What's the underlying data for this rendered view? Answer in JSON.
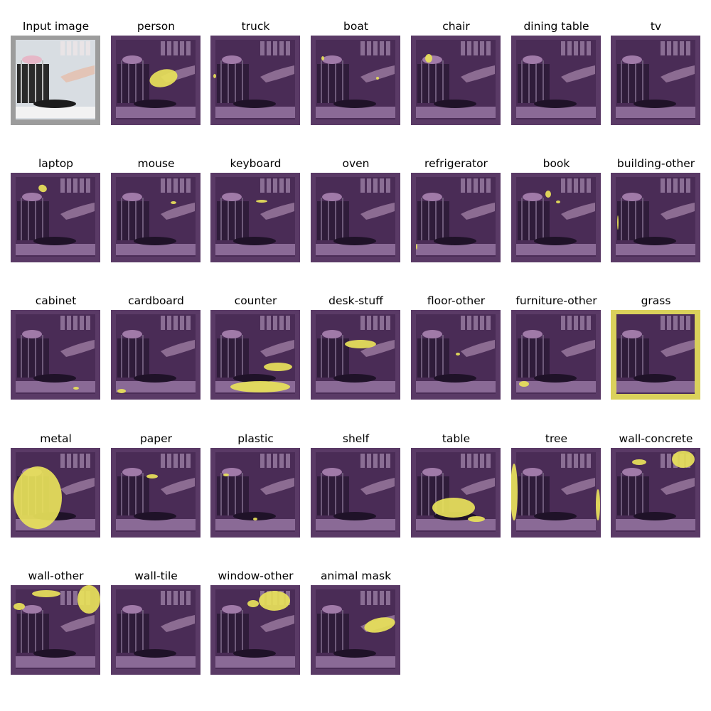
{
  "panels": [
    {
      "title": "Input image",
      "kind": "input",
      "mask": []
    },
    {
      "title": "person",
      "kind": "mask",
      "mask": [
        [
          74,
          60,
          20,
          12,
          -15
        ]
      ]
    },
    {
      "title": "truck",
      "kind": "mask",
      "mask": [
        [
          6,
          57,
          2,
          3,
          0
        ]
      ]
    },
    {
      "title": "boat",
      "kind": "mask",
      "mask": [
        [
          17,
          32,
          2,
          3,
          0
        ],
        [
          94,
          60,
          2,
          2,
          0
        ]
      ]
    },
    {
      "title": "chair",
      "kind": "mask",
      "mask": [
        [
          25,
          32,
          5,
          6,
          0
        ]
      ]
    },
    {
      "title": "dining table",
      "kind": "mask",
      "mask": []
    },
    {
      "title": "tv",
      "kind": "mask",
      "mask": []
    },
    {
      "title": "laptop",
      "kind": "mask",
      "mask": [
        [
          45,
          22,
          6,
          5,
          25
        ]
      ]
    },
    {
      "title": "mouse",
      "kind": "mask",
      "mask": [
        [
          88,
          42,
          4,
          2,
          0
        ]
      ]
    },
    {
      "title": "keyboard",
      "kind": "mask",
      "mask": [
        [
          72,
          40,
          8,
          2,
          0
        ]
      ]
    },
    {
      "title": "oven",
      "kind": "mask",
      "mask": []
    },
    {
      "title": "refrigerator",
      "kind": "mask",
      "mask": [
        [
          8,
          104,
          1,
          4,
          0
        ]
      ]
    },
    {
      "title": "book",
      "kind": "mask",
      "mask": [
        [
          52,
          30,
          4,
          5,
          0
        ],
        [
          66,
          41,
          3,
          2,
          0
        ]
      ]
    },
    {
      "title": "building-other",
      "kind": "mask",
      "mask": [
        [
          10,
          70,
          1,
          10,
          0
        ]
      ]
    },
    {
      "title": "cabinet",
      "kind": "mask",
      "mask": [
        [
          92,
          110,
          4,
          2,
          0
        ]
      ]
    },
    {
      "title": "cardboard",
      "kind": "mask",
      "mask": [
        [
          15,
          114,
          6,
          3,
          0
        ]
      ]
    },
    {
      "title": "counter",
      "kind": "mask",
      "mask": [
        [
          70,
          108,
          42,
          8,
          0
        ],
        [
          95,
          80,
          20,
          6,
          0
        ]
      ]
    },
    {
      "title": "desk-stuff",
      "kind": "mask",
      "mask": [
        [
          70,
          48,
          22,
          6,
          0
        ]
      ]
    },
    {
      "title": "floor-other",
      "kind": "mask",
      "mask": [
        [
          66,
          62,
          3,
          2,
          0
        ]
      ]
    },
    {
      "title": "furniture-other",
      "kind": "mask",
      "mask": [
        [
          18,
          104,
          7,
          4,
          0
        ]
      ]
    },
    {
      "title": "grass",
      "kind": "frame",
      "mask": []
    },
    {
      "title": "metal",
      "kind": "mask",
      "mask": [
        [
          38,
          70,
          34,
          44,
          0
        ]
      ]
    },
    {
      "title": "paper",
      "kind": "mask",
      "mask": [
        [
          58,
          40,
          8,
          3,
          0
        ]
      ]
    },
    {
      "title": "plastic",
      "kind": "mask",
      "mask": [
        [
          22,
          38,
          4,
          2,
          0
        ],
        [
          63,
          100,
          3,
          2,
          0
        ]
      ]
    },
    {
      "title": "shelf",
      "kind": "mask",
      "mask": []
    },
    {
      "title": "table",
      "kind": "mask",
      "mask": [
        [
          60,
          84,
          30,
          14,
          0
        ],
        [
          92,
          100,
          12,
          4,
          0
        ]
      ]
    },
    {
      "title": "tree",
      "kind": "mask",
      "mask": [
        [
          4,
          62,
          5,
          40,
          0
        ],
        [
          122,
          80,
          3,
          22,
          0
        ]
      ]
    },
    {
      "title": "wall-concrete",
      "kind": "mask",
      "mask": [
        [
          102,
          16,
          16,
          12,
          0
        ],
        [
          40,
          20,
          10,
          4,
          0
        ]
      ]
    },
    {
      "title": "wall-other",
      "kind": "mask",
      "mask": [
        [
          110,
          20,
          16,
          20,
          0
        ],
        [
          50,
          12,
          20,
          5,
          0
        ],
        [
          12,
          30,
          8,
          5,
          0
        ]
      ]
    },
    {
      "title": "wall-tile",
      "kind": "mask",
      "mask": []
    },
    {
      "title": "window-other",
      "kind": "mask",
      "mask": [
        [
          90,
          22,
          22,
          14,
          0
        ],
        [
          60,
          26,
          8,
          5,
          0
        ]
      ]
    },
    {
      "title": "animal mask",
      "kind": "mask",
      "mask": [
        [
          97,
          56,
          22,
          10,
          -12
        ]
      ]
    }
  ],
  "colors": {
    "overlay_purple": "#6b3f78",
    "mask_yellow": "#e8e25a",
    "background": "#ffffff"
  }
}
